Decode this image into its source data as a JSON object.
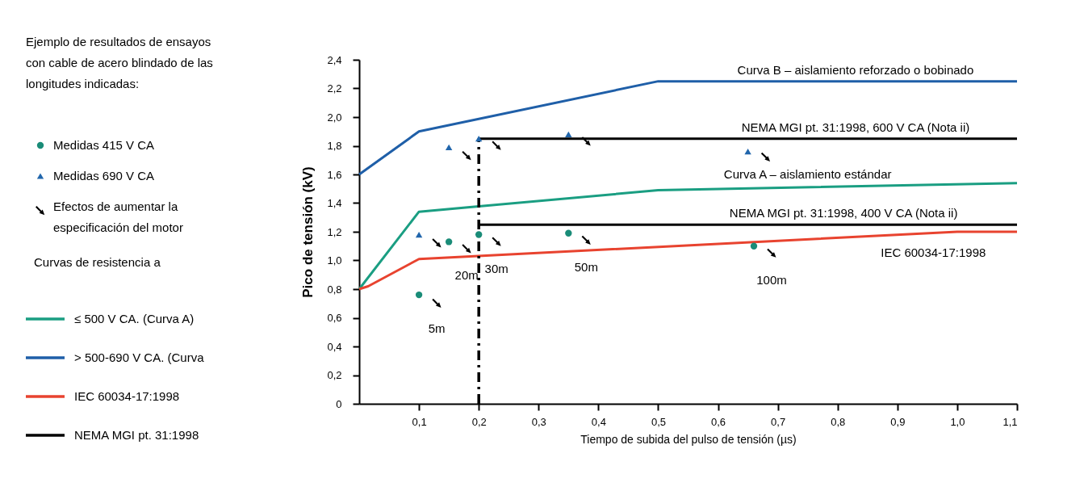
{
  "chart_data": {
    "type": "line",
    "title": "Ejemplo de resultados de ensayos con cable de acero blindado de las longitudes indicadas:",
    "legend_title": "Curvas de resistencia a",
    "xlabel": "Tiempo de subida del pulso de tensión (µs)",
    "ylabel": "Pico de tensión (kV)",
    "xlim": [
      0,
      1.1
    ],
    "ylim": [
      0,
      2.4
    ],
    "xticks": [
      {
        "value": 0.1,
        "label": "0,1"
      },
      {
        "value": 0.2,
        "label": "0,2"
      },
      {
        "value": 0.3,
        "label": "0,3"
      },
      {
        "value": 0.4,
        "label": "0,4"
      },
      {
        "value": 0.5,
        "label": "0,5"
      },
      {
        "value": 0.6,
        "label": "0,6"
      },
      {
        "value": 0.7,
        "label": "0,7"
      },
      {
        "value": 0.8,
        "label": "0,8"
      },
      {
        "value": 0.9,
        "label": "0,9"
      },
      {
        "value": 1.0,
        "label": "1,0"
      },
      {
        "value": 1.1,
        "label": "1,1"
      }
    ],
    "yticks": [
      0,
      {
        "value": 0.2,
        "label": "0,2"
      },
      {
        "value": 0.4,
        "label": "0,4"
      },
      {
        "value": 0.6,
        "label": "0,6"
      },
      {
        "value": 0.8,
        "label": "0,8"
      },
      {
        "value": 1.0,
        "label": "1,0"
      },
      {
        "value": 1.2,
        "label": "1,2"
      },
      {
        "value": 1.4,
        "label": "1,4"
      },
      {
        "value": 1.6,
        "label": "1,6"
      },
      {
        "value": 1.8,
        "label": "1,8"
      },
      {
        "value": 2.0,
        "label": "2,0"
      },
      {
        "value": 2.2,
        "label": "2,2"
      },
      {
        "value": 2.4,
        "label": "2,4"
      }
    ],
    "grid": false,
    "legend": "left",
    "series": [
      {
        "name": "Medidas 415 V CA",
        "type": "scatter",
        "marker": "circle",
        "color": "#1a8c78",
        "x": [
          0.1,
          0.15,
          0.2,
          0.35,
          0.66
        ],
        "values": [
          0.76,
          1.13,
          1.18,
          1.19,
          1.1
        ]
      },
      {
        "name": "Medidas 690 V CA",
        "type": "scatter",
        "marker": "triangle",
        "color": "#2166ac",
        "x": [
          0.1,
          0.15,
          0.2,
          0.35,
          0.65
        ],
        "values": [
          1.18,
          1.79,
          1.85,
          1.88,
          1.76
        ]
      },
      {
        "name": "Efectos de aumentar la especificación del motor",
        "type": "scatter",
        "color": "#000000",
        "x": [
          0.13,
          0.18,
          0.23,
          0.38,
          0.69,
          0.13,
          0.18,
          0.23,
          0.38,
          0.68
        ],
        "values": [
          0.7,
          1.08,
          1.13,
          1.14,
          1.05,
          1.12,
          1.73,
          1.8,
          1.83,
          1.72
        ]
      },
      {
        "name": "≤ 500 V CA. (Curva A)",
        "color": "#1a9e82",
        "x": [
          0,
          0.1,
          0.5,
          1.1
        ],
        "values": [
          0.8,
          1.34,
          1.49,
          1.54
        ]
      },
      {
        "name": "> 500-690 V CA. (Curva",
        "color": "#1f5fa8",
        "x": [
          0,
          0.1,
          0.5,
          1.1
        ],
        "values": [
          1.6,
          1.9,
          2.25,
          2.25
        ]
      },
      {
        "name": "IEC 60034-17:1998",
        "color": "#e8432f",
        "x": [
          0,
          0.015,
          0.1,
          1.0,
          1.1
        ],
        "values": [
          0.8,
          0.82,
          1.01,
          1.2,
          1.2
        ]
      },
      {
        "name": "NEMA MGI pt. 31:1998",
        "color": "#000000",
        "x": [
          0.2,
          1.1
        ],
        "values": [
          1.85,
          1.85
        ]
      },
      {
        "color": "#000000",
        "x": [
          0.2,
          1.1
        ],
        "values": [
          1.25,
          1.25
        ]
      },
      {
        "color": "#000000",
        "line_style": "dashed",
        "x": [
          0.2,
          0.2
        ],
        "values": [
          0,
          1.85
        ]
      }
    ],
    "annotations": [
      {
        "text": "Curva B – aislamiento reforzado o bobinado",
        "x": 0.83,
        "y": 2.25
      },
      {
        "text": "NEMA MGI pt. 31:1998, 600 V CA (Nota ii)",
        "x": 0.83,
        "y": 1.85
      },
      {
        "text": "Curva A – aislamiento estándar",
        "x": 0.75,
        "y": 1.52
      },
      {
        "text": "NEMA MGI pt. 31:1998, 400 V CA (Nota ii)",
        "x": 0.81,
        "y": 1.25
      },
      {
        "text": "IEC 60034-17:1998",
        "x": 0.96,
        "y": 1.19
      },
      {
        "text": "5m",
        "x": 0.1,
        "y": 0.76
      },
      {
        "text": "20m",
        "x": 0.15,
        "y": 1.13
      },
      {
        "text": "30m",
        "x": 0.2,
        "y": 1.18
      },
      {
        "text": "50m",
        "x": 0.35,
        "y": 1.19
      },
      {
        "text": "100m",
        "x": 0.66,
        "y": 1.1
      }
    ]
  }
}
